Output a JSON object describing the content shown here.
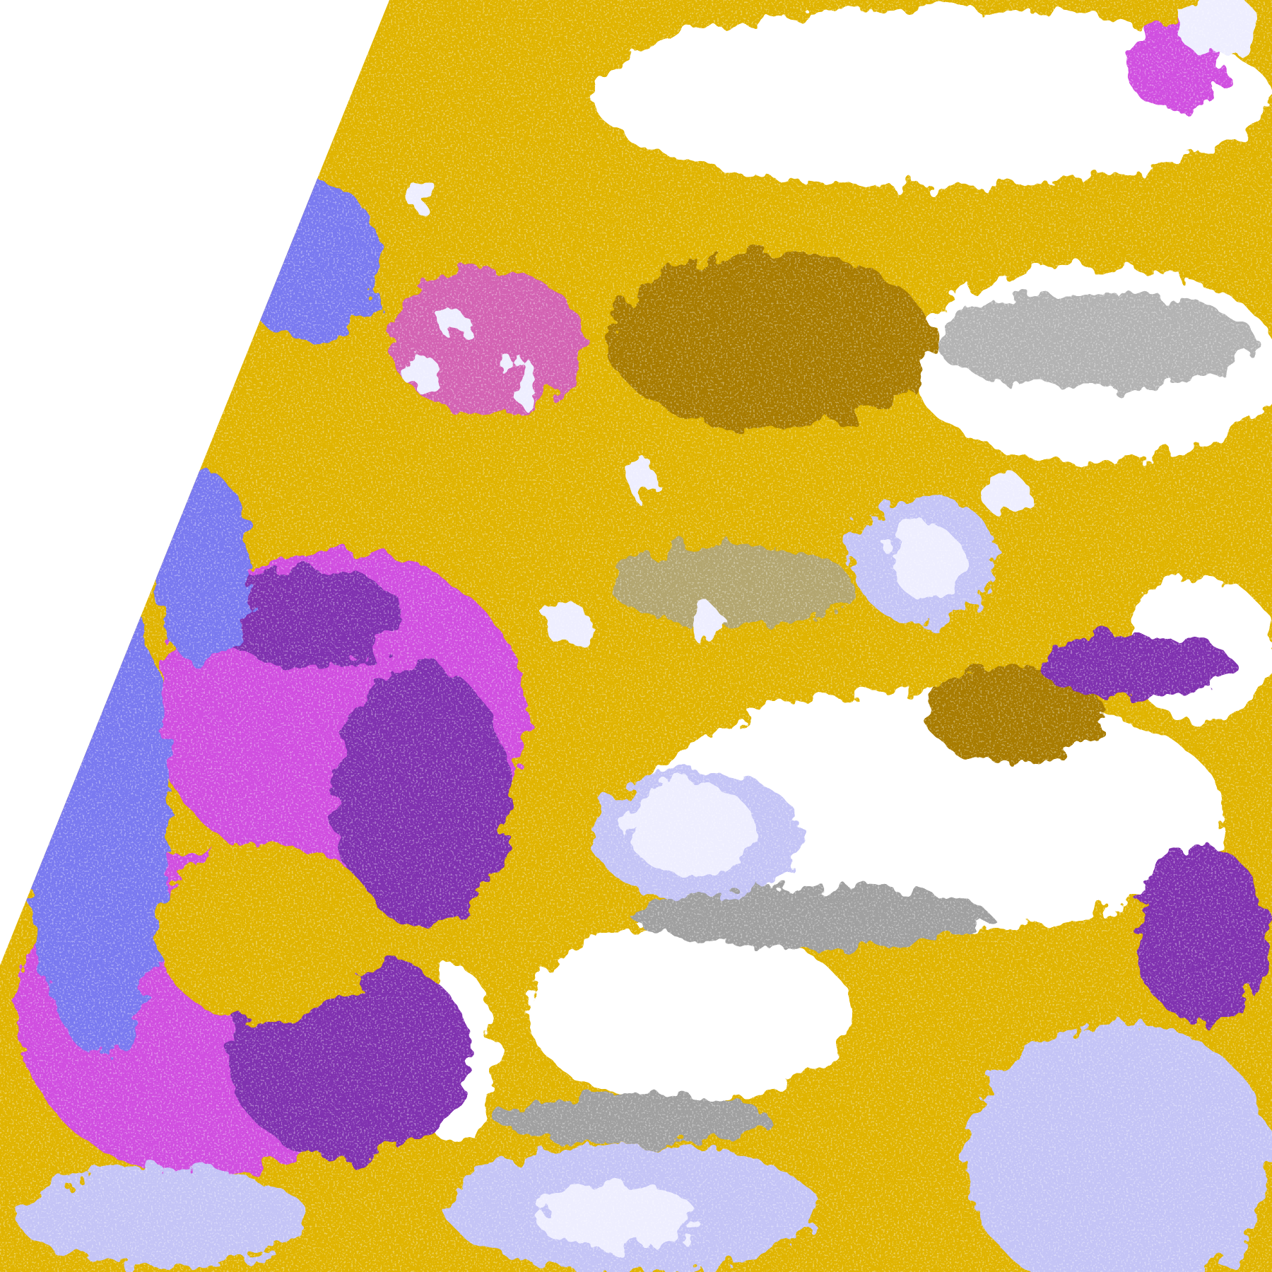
{
  "map": {
    "palette": {
      "background": "#ffffff",
      "gold": "#e0b400",
      "dark_gold": "#a87c00",
      "purple": "#8033b0",
      "magenta": "#d050e0",
      "blue_violet": "#7a7af0",
      "lavender": "#c4c4f6",
      "pale_lavender": "#eeeeff",
      "gray": "#a0a0a0"
    }
  }
}
